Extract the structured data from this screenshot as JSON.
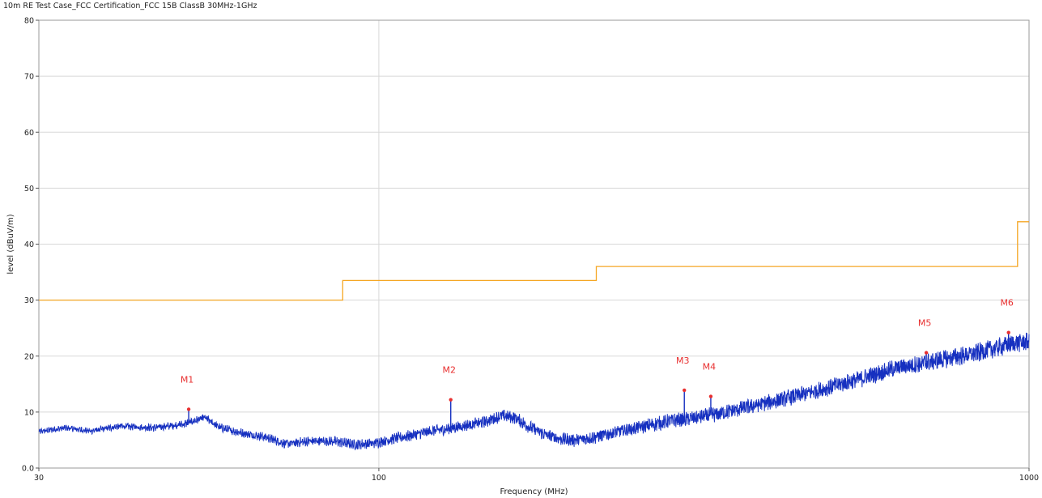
{
  "chart_data": {
    "type": "line",
    "title": "10m RE Test Case_FCC Certification_FCC 15B ClassB 30MHz-1GHz",
    "xlabel": "Frequency (MHz)",
    "ylabel": "level (dBuV/m)",
    "x_scale": "log",
    "xlim": [
      30,
      1000
    ],
    "ylim": [
      0,
      80
    ],
    "x_ticks": [
      30,
      100,
      1000
    ],
    "x_tick_labels": [
      "30",
      "100",
      "1000"
    ],
    "y_ticks": [
      0,
      10,
      20,
      30,
      40,
      50,
      60,
      70,
      80
    ],
    "y_tick_labels": [
      "0.0",
      "10",
      "20",
      "30",
      "40",
      "50",
      "60",
      "70",
      "80"
    ],
    "grid": true,
    "colors": {
      "limit": "#f5a623",
      "trace": "#1630c0",
      "marker": "#e83030",
      "grid": "#d8d8d8"
    },
    "series": [
      {
        "role": "limit",
        "x": [
          30,
          88,
          88,
          216,
          216,
          960,
          960,
          1000
        ],
        "y": [
          30,
          30,
          33.5,
          33.5,
          36,
          36,
          44,
          44
        ]
      },
      {
        "role": "measured",
        "x": [
          30,
          33,
          36,
          40,
          45,
          50,
          54,
          57,
          62,
          67,
          72,
          78,
          85,
          92,
          98,
          105,
          112,
          120,
          128,
          136,
          145,
          155,
          162,
          170,
          180,
          190,
          200,
          210,
          220,
          240,
          260,
          280,
          300,
          330,
          360,
          400,
          450,
          500,
          560,
          620,
          680,
          750,
          820,
          900,
          960,
          1000
        ],
        "y": [
          6.5,
          7.2,
          6.6,
          7.5,
          7.2,
          7.8,
          9.0,
          7.2,
          6.2,
          5.5,
          4.3,
          4.8,
          4.8,
          4.2,
          4.4,
          5.2,
          5.8,
          6.6,
          7.0,
          7.6,
          8.2,
          9.4,
          9.0,
          7.4,
          6.0,
          5.2,
          5.0,
          5.3,
          5.8,
          6.8,
          7.6,
          8.4,
          8.8,
          9.6,
          10.6,
          11.8,
          13.2,
          14.6,
          16.2,
          17.8,
          18.6,
          19.6,
          20.4,
          21.6,
          22.4,
          22.6
        ]
      }
    ],
    "markers": [
      {
        "label": "M1",
        "x": 51.0,
        "y": 10.5
      },
      {
        "label": "M2",
        "x": 129.0,
        "y": 12.2
      },
      {
        "label": "M3",
        "x": 295.0,
        "y": 13.9
      },
      {
        "label": "M4",
        "x": 324.0,
        "y": 12.8
      },
      {
        "label": "M5",
        "x": 695.0,
        "y": 20.6
      },
      {
        "label": "M6",
        "x": 930.0,
        "y": 24.2
      }
    ]
  }
}
